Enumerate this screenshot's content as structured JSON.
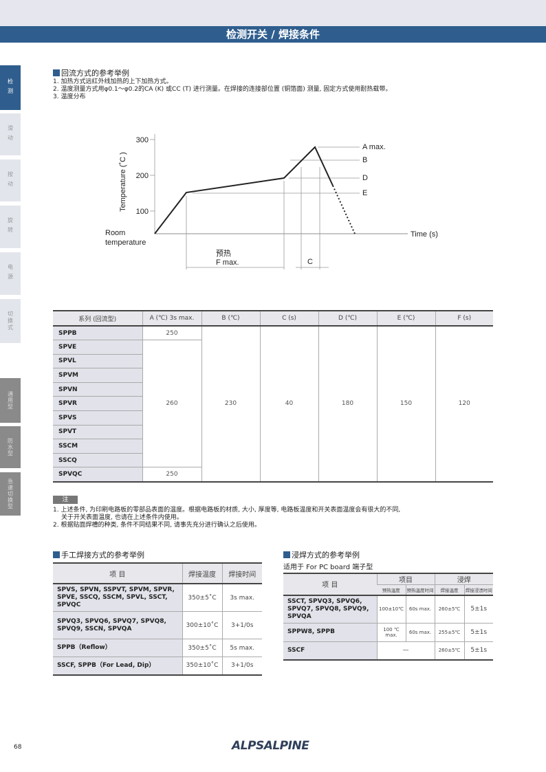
{
  "header": {
    "title": "检测开关 / 焊接条件"
  },
  "sidebar": {
    "items": [
      {
        "label": "检测",
        "state": "active"
      },
      {
        "label": "滑动",
        "state": "light"
      },
      {
        "label": "按动",
        "state": "light"
      },
      {
        "label": "旋转",
        "state": "light"
      },
      {
        "label": "电源",
        "state": "light"
      },
      {
        "label": "切换式",
        "state": "light"
      },
      {
        "label": "通用型",
        "state": "dark"
      },
      {
        "label": "防水型",
        "state": "dark"
      },
      {
        "label": "急速切换型",
        "state": "dark"
      }
    ]
  },
  "reflow": {
    "title": "回流方式的参考举例",
    "lines": [
      "1. 加热方式远红外线加热的上下加热方式。",
      "2. 温度测量方式用φ0.1～φ0.2的CA (K) 或CC (T) 进行测量。在焊接的连接部位置 (铜箔面) 测量, 固定方式使用耐热载带。",
      "3. 温度分布"
    ]
  },
  "diagram": {
    "y_ticks": [
      "300",
      "200",
      "100"
    ],
    "ylabel": "Temperature (˚C )",
    "room": [
      "Room",
      "temperature"
    ],
    "xlabel": "Time (s)",
    "labels": {
      "a": "A max.",
      "b": "B",
      "d": "D",
      "e": "E",
      "preheat": "预热",
      "f": "F max.",
      "c": "C"
    }
  },
  "reflow_table": {
    "headers": [
      "系列 (回流型)",
      "A (℃) 3s max.",
      "B (℃)",
      "C (s)",
      "D (℃)",
      "E (℃)",
      "F (s)"
    ],
    "series": [
      "SPPB",
      "SPVE",
      "SPVL",
      "SPVM",
      "SPVN",
      "SPVR",
      "SPVS",
      "SPVT",
      "SSCM",
      "SSCQ",
      "SPVQC"
    ],
    "a_values": {
      "top": "250",
      "mid": "260",
      "bottom": "250"
    },
    "b": "230",
    "c": "40",
    "d": "180",
    "e": "150",
    "f": "120"
  },
  "notes": {
    "tag": "注",
    "lines": [
      "1. 上述条件, 为印刷电路板的零部品表面的温度。根据电路板的材质, 大小, 厚度等, 电路板温度和开关表面温度会有很大的不同,",
      "关于开关表面温度, 也请在上述条件内使用。",
      "2. 根据贴面焊槽的种类, 条件不同结果不同, 请事先充分进行确认之后使用。"
    ]
  },
  "hand": {
    "title": "手工焊接方式的参考举例",
    "headers": [
      "项 目",
      "焊接温度",
      "焊接时间"
    ],
    "rows": [
      [
        "SPVS, SPVN, SSPVT, SPVM, SPVR, SPVE, SSCQ, SSCM, SPVL, SSCT, SPVQC",
        "350±5˚C",
        "3s max."
      ],
      [
        "SPVQ3, SPVQ6, SPVQ7, SPVQ8, SPVQ9, SSCN, SPVQA",
        "300±10˚C",
        "3+1/0s"
      ],
      [
        "SPPB（Reflow）",
        "350±5˚C",
        "5s max."
      ],
      [
        "SSCF, SPPB（For Lead, Dip）",
        "350±10˚C",
        "3+1/0s"
      ]
    ]
  },
  "dip": {
    "title": "浸焊方式的参考举例",
    "subtitle": "适用于 For PC board 端子型",
    "headers": {
      "item": "项 目",
      "group1": "项目",
      "group2": "浸焊",
      "sub": [
        "预热温度",
        "预热温度时间",
        "焊接温度",
        "焊接浸渍时间"
      ]
    },
    "rows": [
      [
        "SSCT, SPVQ3, SPVQ6, SPVQ7, SPVQ8, SPVQ9, SPVQA",
        "100±10℃",
        "60s max.",
        "260±5℃",
        "5±1s"
      ],
      [
        "SPPW8, SPPB",
        "100 ℃ max.",
        "60s max.",
        "255±5℃",
        "5±1s"
      ],
      [
        "SSCF",
        "—",
        "260±5℃",
        "5±1s"
      ]
    ]
  },
  "footer": {
    "page": "68",
    "logo": "ALPSALPINE"
  }
}
